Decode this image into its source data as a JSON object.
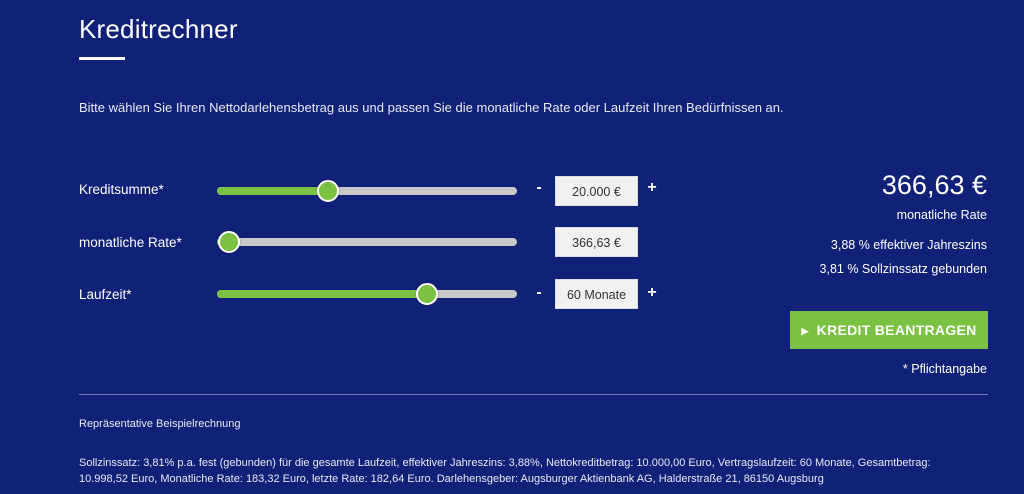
{
  "header": {
    "title": "Kreditrechner",
    "intro": "Bitte wählen Sie Ihren Nettodarlehensbetrag aus und passen Sie die monatliche Rate oder Laufzeit Ihren Bedürfnissen an."
  },
  "sliders": [
    {
      "label": "Kreditsumme*",
      "value": "20.000 €",
      "fraction": 0.37,
      "minus": "-",
      "plus": "+"
    },
    {
      "label": "monatliche Rate*",
      "value": "366,63 €",
      "fraction": 0.04
    },
    {
      "label": "Laufzeit*",
      "value": "60 Monate",
      "fraction": 0.7,
      "minus": "-",
      "plus": "+"
    }
  ],
  "summary": {
    "rate": "366,63 €",
    "rate_label": "monatliche Rate",
    "effective": "3,88 % effektiver Jahreszins",
    "nominal": "3,81 % Sollzinssatz gebunden",
    "cta_label": "KREDIT BEANTRAGEN",
    "required_note": "* Pflichtangabe"
  },
  "example": {
    "title": "Repräsentative Beispielrechnung",
    "text": "Sollzinssatz: 3,81% p.a. fest (gebunden) für die gesamte Laufzeit, effektiver Jahreszins: 3,88%, Nettokreditbetrag: 10.000,00 Euro, Vertragslaufzeit: 60 Monate, Gesamtbetrag: 10.998,52 Euro, Monatliche Rate: 183,32 Euro, letzte Rate: 182,64 Euro. Darlehensgeber: Augsburger Aktienbank AG, Halderstraße 21, 86150 Augsburg"
  },
  "colors": {
    "background": "#112177",
    "accent": "#7bc242",
    "track": "#c8c8c8"
  }
}
